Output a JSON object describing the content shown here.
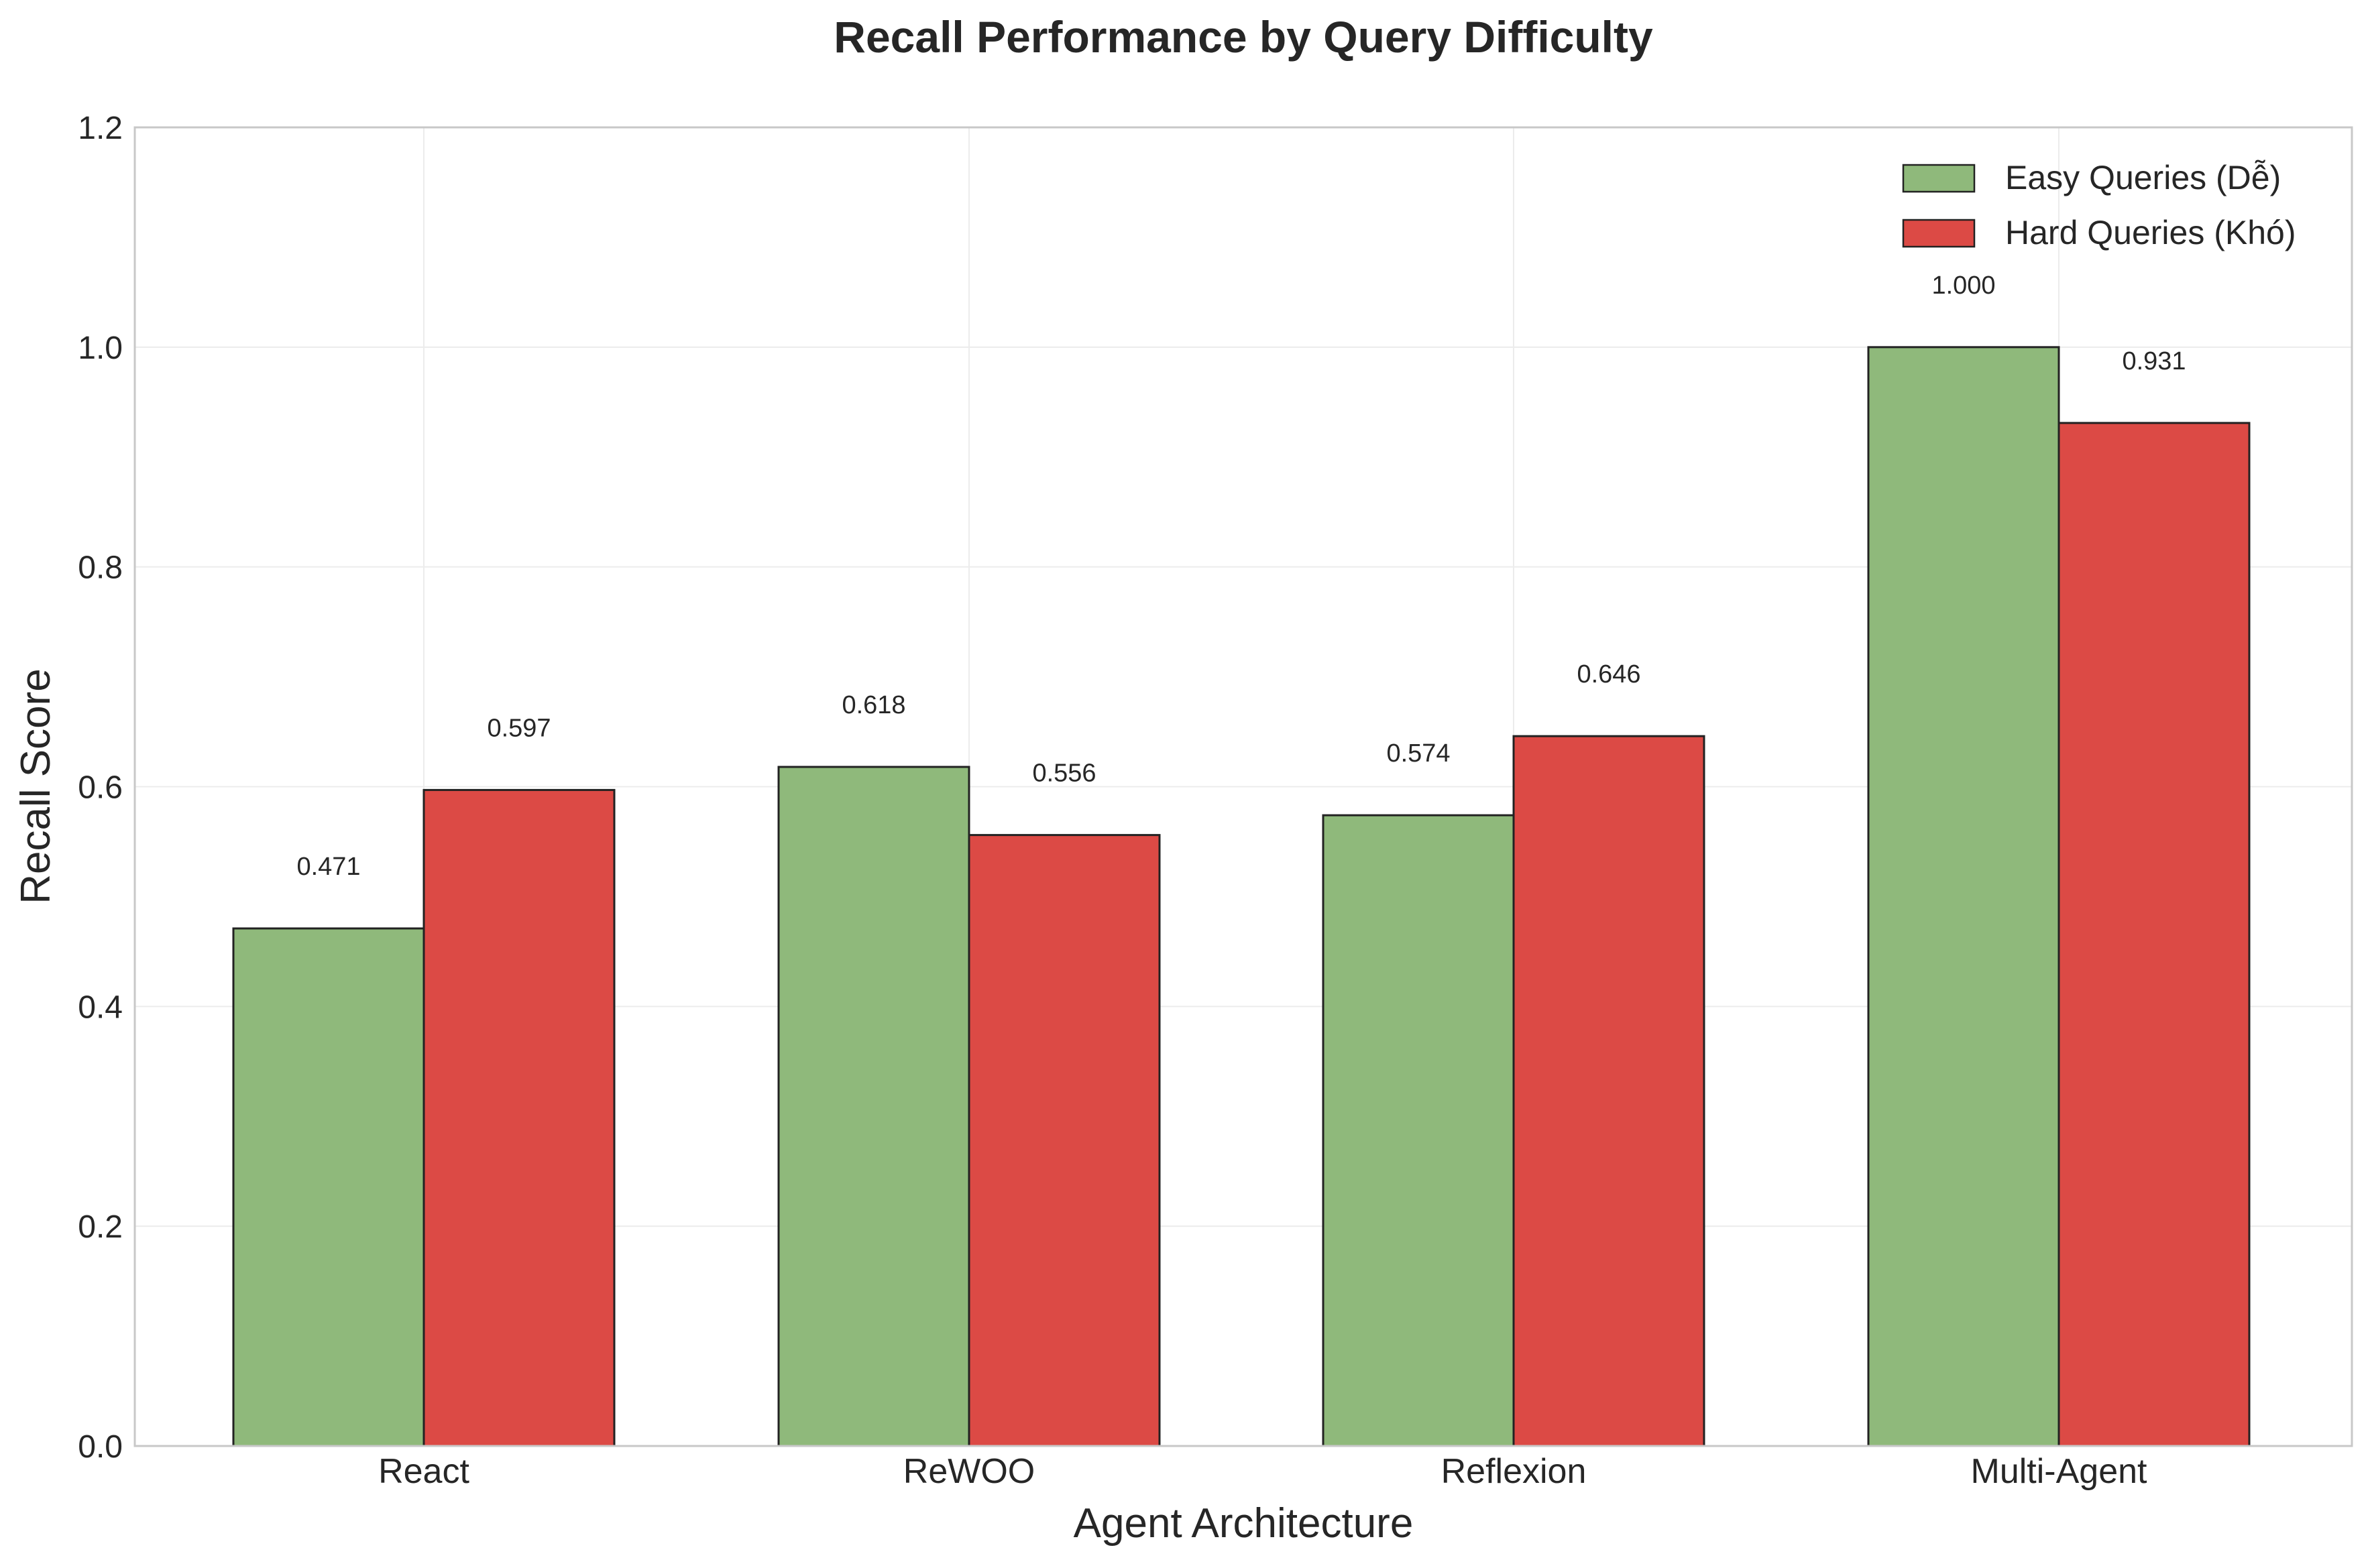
{
  "chart_data": {
    "type": "bar",
    "title": "Recall Performance by Query Difficulty",
    "xlabel": "Agent Architecture",
    "ylabel": "Recall Score",
    "categories": [
      "React",
      "ReWOO",
      "Reflexion",
      "Multi-Agent"
    ],
    "series": [
      {
        "name": "Easy Queries (Dễ)",
        "color": "#8fb97b",
        "values": [
          0.471,
          0.618,
          0.574,
          1.0
        ],
        "labels": [
          "0.471",
          "0.618",
          "0.574",
          "1.000"
        ]
      },
      {
        "name": "Hard Queries (Khó)",
        "color": "#dc4a45",
        "values": [
          0.597,
          0.556,
          0.646,
          0.931
        ],
        "labels": [
          "0.597",
          "0.556",
          "0.646",
          "0.931"
        ]
      }
    ],
    "ylim": [
      0,
      1.2
    ],
    "yticks": [
      0.0,
      0.2,
      0.4,
      0.6,
      0.8,
      1.0,
      1.2
    ],
    "ytick_labels": [
      "0.0",
      "0.2",
      "0.4",
      "0.6",
      "0.8",
      "1.0",
      "1.2"
    ],
    "grid": true,
    "legend_position": "top-right"
  }
}
